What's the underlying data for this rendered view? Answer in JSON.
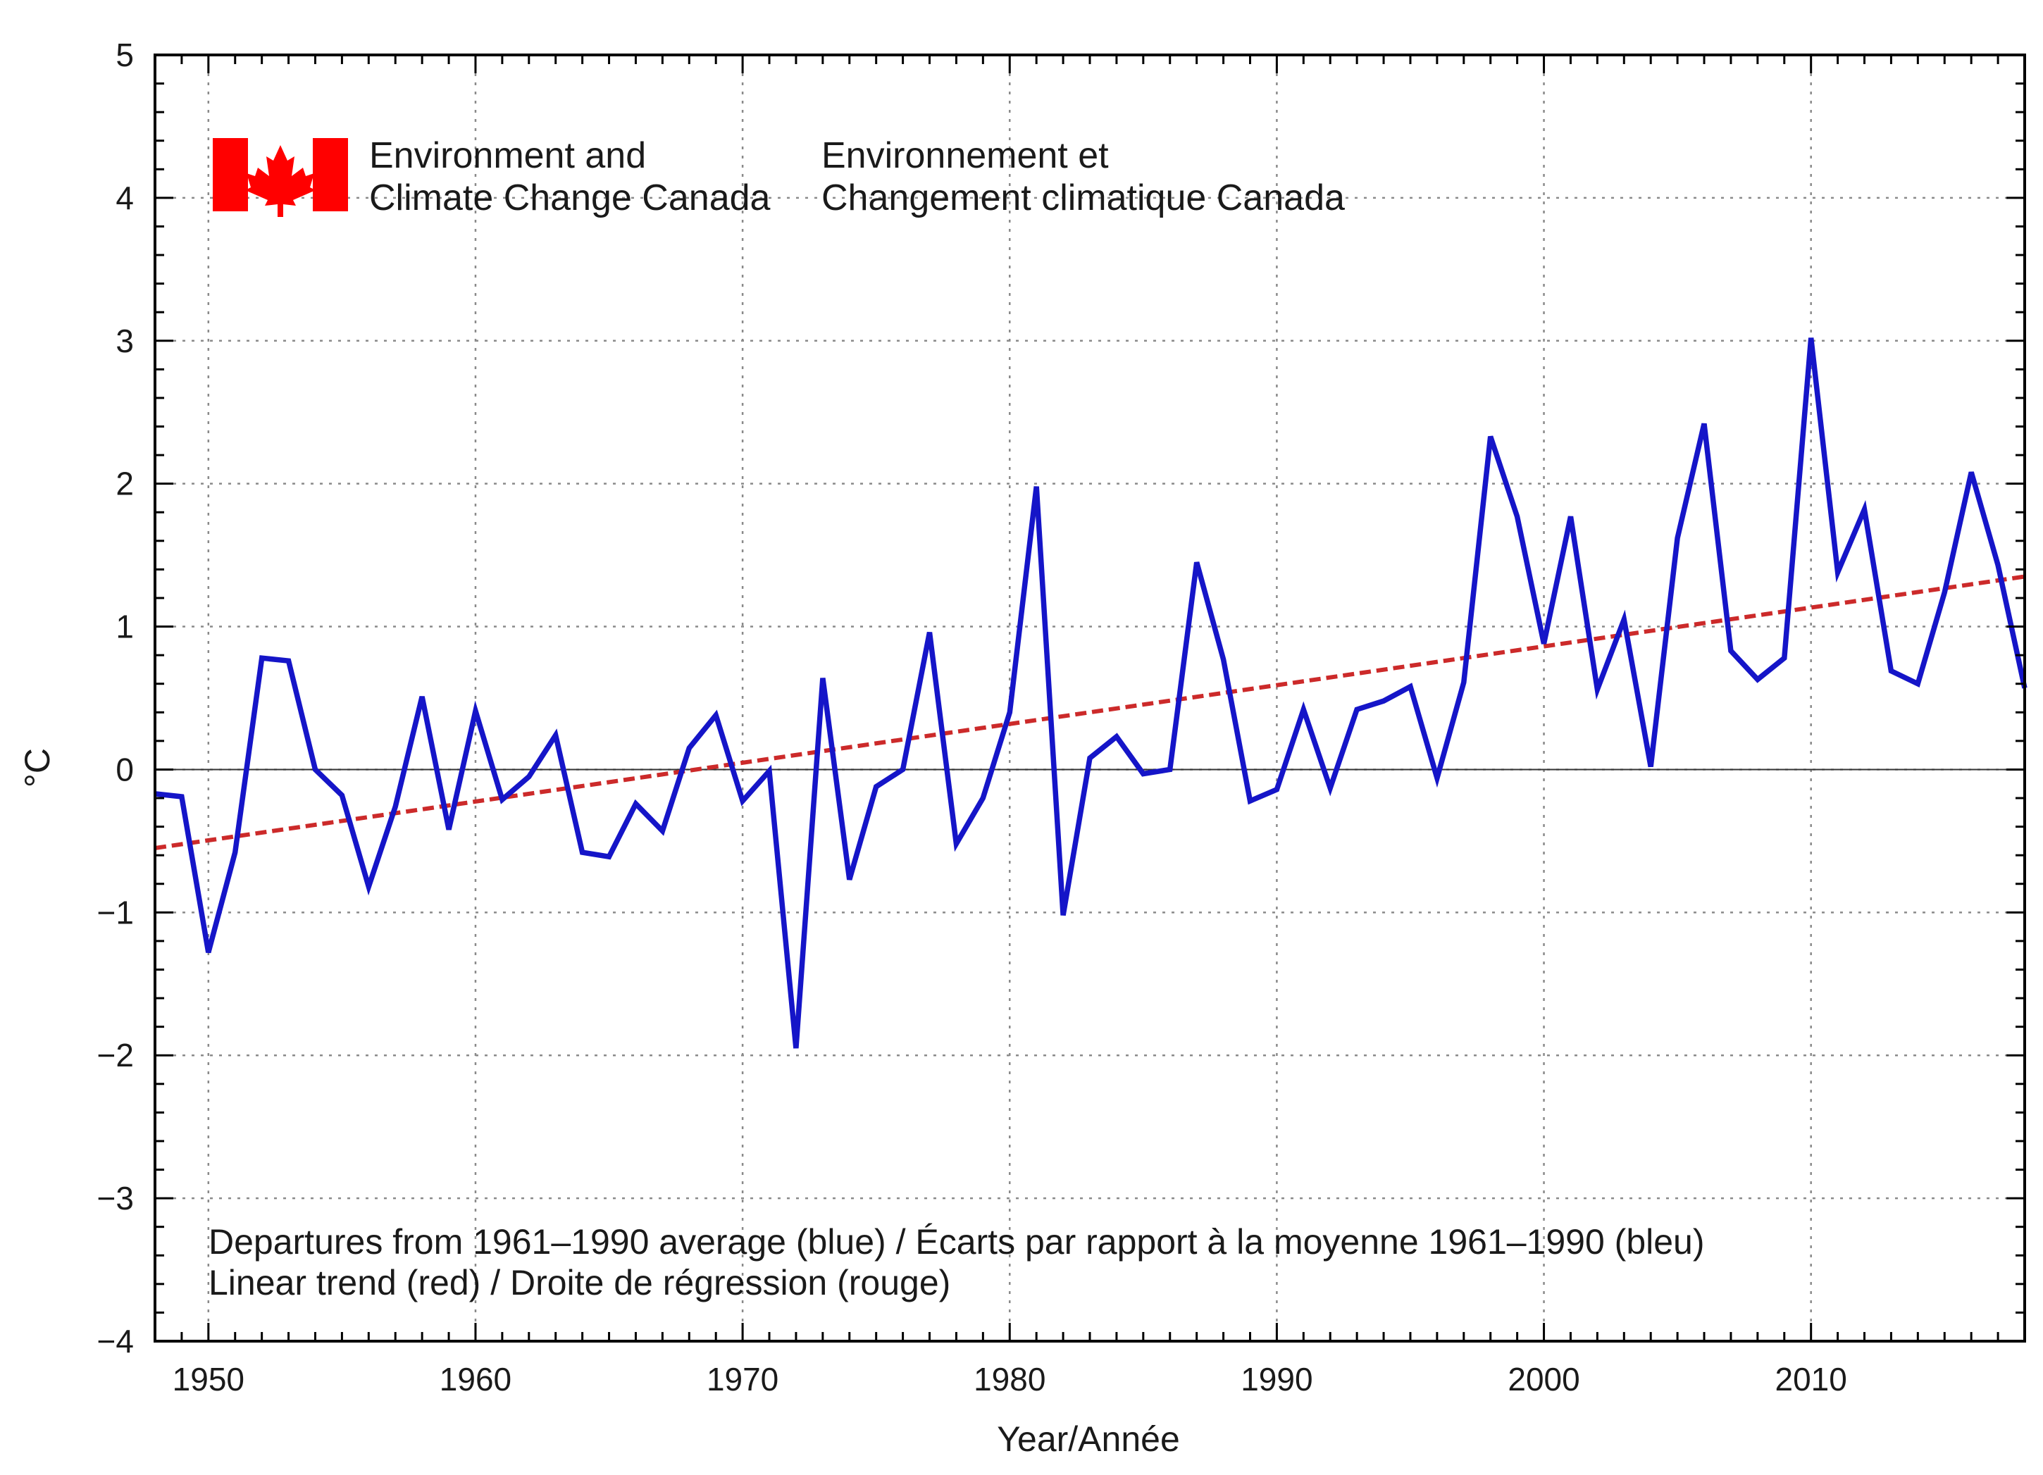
{
  "chart_data": {
    "type": "line",
    "title": "",
    "xlabel": "Year/Année",
    "ylabel": "°C",
    "xlim": [
      1948,
      2018
    ],
    "ylim": [
      -4,
      5
    ],
    "xticks": [
      1950,
      1960,
      1970,
      1980,
      1990,
      2000,
      2010
    ],
    "yticks": [
      -4,
      -3,
      -2,
      -1,
      0,
      1,
      2,
      3,
      4,
      5
    ],
    "grid": true,
    "series": [
      {
        "name": "Departures from 1961–1990 average",
        "color": "#1515c8",
        "style": "solid",
        "x": [
          1948,
          1949,
          1950,
          1951,
          1952,
          1953,
          1954,
          1955,
          1956,
          1957,
          1958,
          1959,
          1960,
          1961,
          1962,
          1963,
          1964,
          1965,
          1966,
          1967,
          1968,
          1969,
          1970,
          1971,
          1972,
          1973,
          1974,
          1975,
          1976,
          1977,
          1978,
          1979,
          1980,
          1981,
          1982,
          1983,
          1984,
          1985,
          1986,
          1987,
          1988,
          1989,
          1990,
          1991,
          1992,
          1993,
          1994,
          1995,
          1996,
          1997,
          1998,
          1999,
          2000,
          2001,
          2002,
          2003,
          2004,
          2005,
          2006,
          2007,
          2008,
          2009,
          2010,
          2011,
          2012,
          2013,
          2014,
          2015,
          2016,
          2017,
          2018
        ],
        "values": [
          -0.17,
          -0.19,
          -1.28,
          -0.58,
          0.78,
          0.76,
          0.0,
          -0.18,
          -0.82,
          -0.26,
          0.51,
          -0.42,
          0.41,
          -0.21,
          -0.05,
          0.24,
          -0.58,
          -0.61,
          -0.24,
          -0.43,
          0.15,
          0.38,
          -0.22,
          -0.01,
          -1.95,
          0.64,
          -0.77,
          -0.12,
          0.0,
          0.96,
          -0.52,
          -0.2,
          0.4,
          1.98,
          -1.02,
          0.08,
          0.23,
          -0.03,
          0.0,
          1.45,
          0.77,
          -0.22,
          -0.14,
          0.42,
          -0.13,
          0.42,
          0.48,
          0.58,
          -0.06,
          0.61,
          2.33,
          1.77,
          0.88,
          1.77,
          0.56,
          1.05,
          0.02,
          1.62,
          2.42,
          0.83,
          0.63,
          0.78,
          3.02,
          1.38,
          1.82,
          0.69,
          0.6,
          1.24,
          2.08,
          1.43,
          0.57
        ]
      },
      {
        "name": "Linear trend",
        "color": "#cc2a2a",
        "style": "dashed",
        "x": [
          1948,
          2018
        ],
        "values": [
          -0.55,
          1.35
        ]
      }
    ],
    "reference_line": 0,
    "legend": {
      "placement": "bottom-left",
      "line1": "Departures from 1961–1990 average (blue) / Écarts par rapport à la moyenne 1961–1990 (bleu)",
      "line2": "Linear trend (red) / Droite de régression (rouge)"
    }
  },
  "logo": {
    "en_line1": "Environment and",
    "en_line2": "Climate Change Canada",
    "fr_line1": "Environnement et",
    "fr_line2": "Changement climatique Canada",
    "flag_color": "#ff0000",
    "icon": "canada-flag-icon"
  }
}
